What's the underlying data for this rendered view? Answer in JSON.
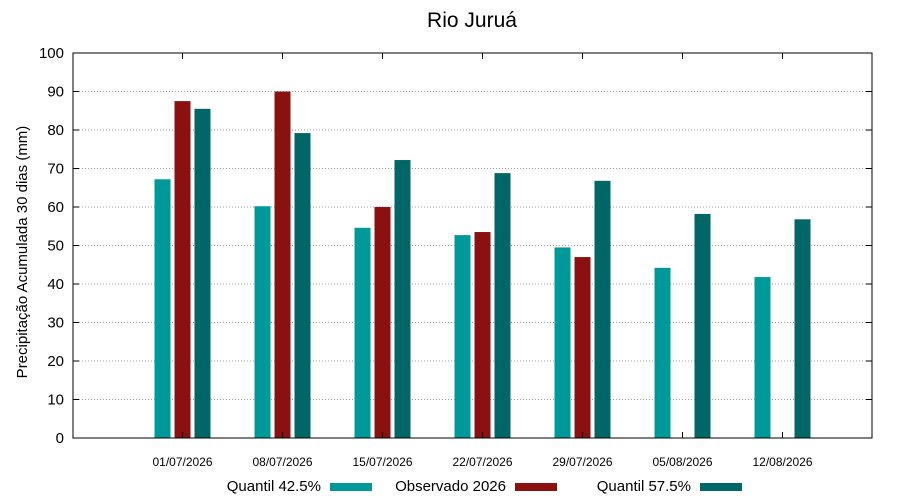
{
  "chart_data": {
    "type": "bar",
    "title": "Rio Juruá",
    "xlabel": "",
    "ylabel": "Precipitação Acumulada 30 dias (mm)",
    "ylim": [
      0,
      100
    ],
    "yticks": [
      0,
      10,
      20,
      30,
      40,
      50,
      60,
      70,
      80,
      90,
      100
    ],
    "grid": true,
    "legend_position": "bottom",
    "categories": [
      "01/07/2026",
      "08/07/2026",
      "15/07/2026",
      "22/07/2026",
      "29/07/2026",
      "05/08/2026",
      "12/08/2026"
    ],
    "series": [
      {
        "name": "Quantil 42.5%",
        "color": "#009999",
        "values": [
          67.2,
          60.2,
          54.6,
          52.7,
          49.5,
          44.2,
          41.8
        ]
      },
      {
        "name": "Observado 2026",
        "color": "#8b1010",
        "values": [
          87.5,
          90.0,
          60.0,
          53.5,
          47.0,
          null,
          null
        ]
      },
      {
        "name": "Quantil 57.5%",
        "color": "#006666",
        "values": [
          85.5,
          79.2,
          72.2,
          68.8,
          66.8,
          58.2,
          56.8
        ]
      }
    ]
  }
}
